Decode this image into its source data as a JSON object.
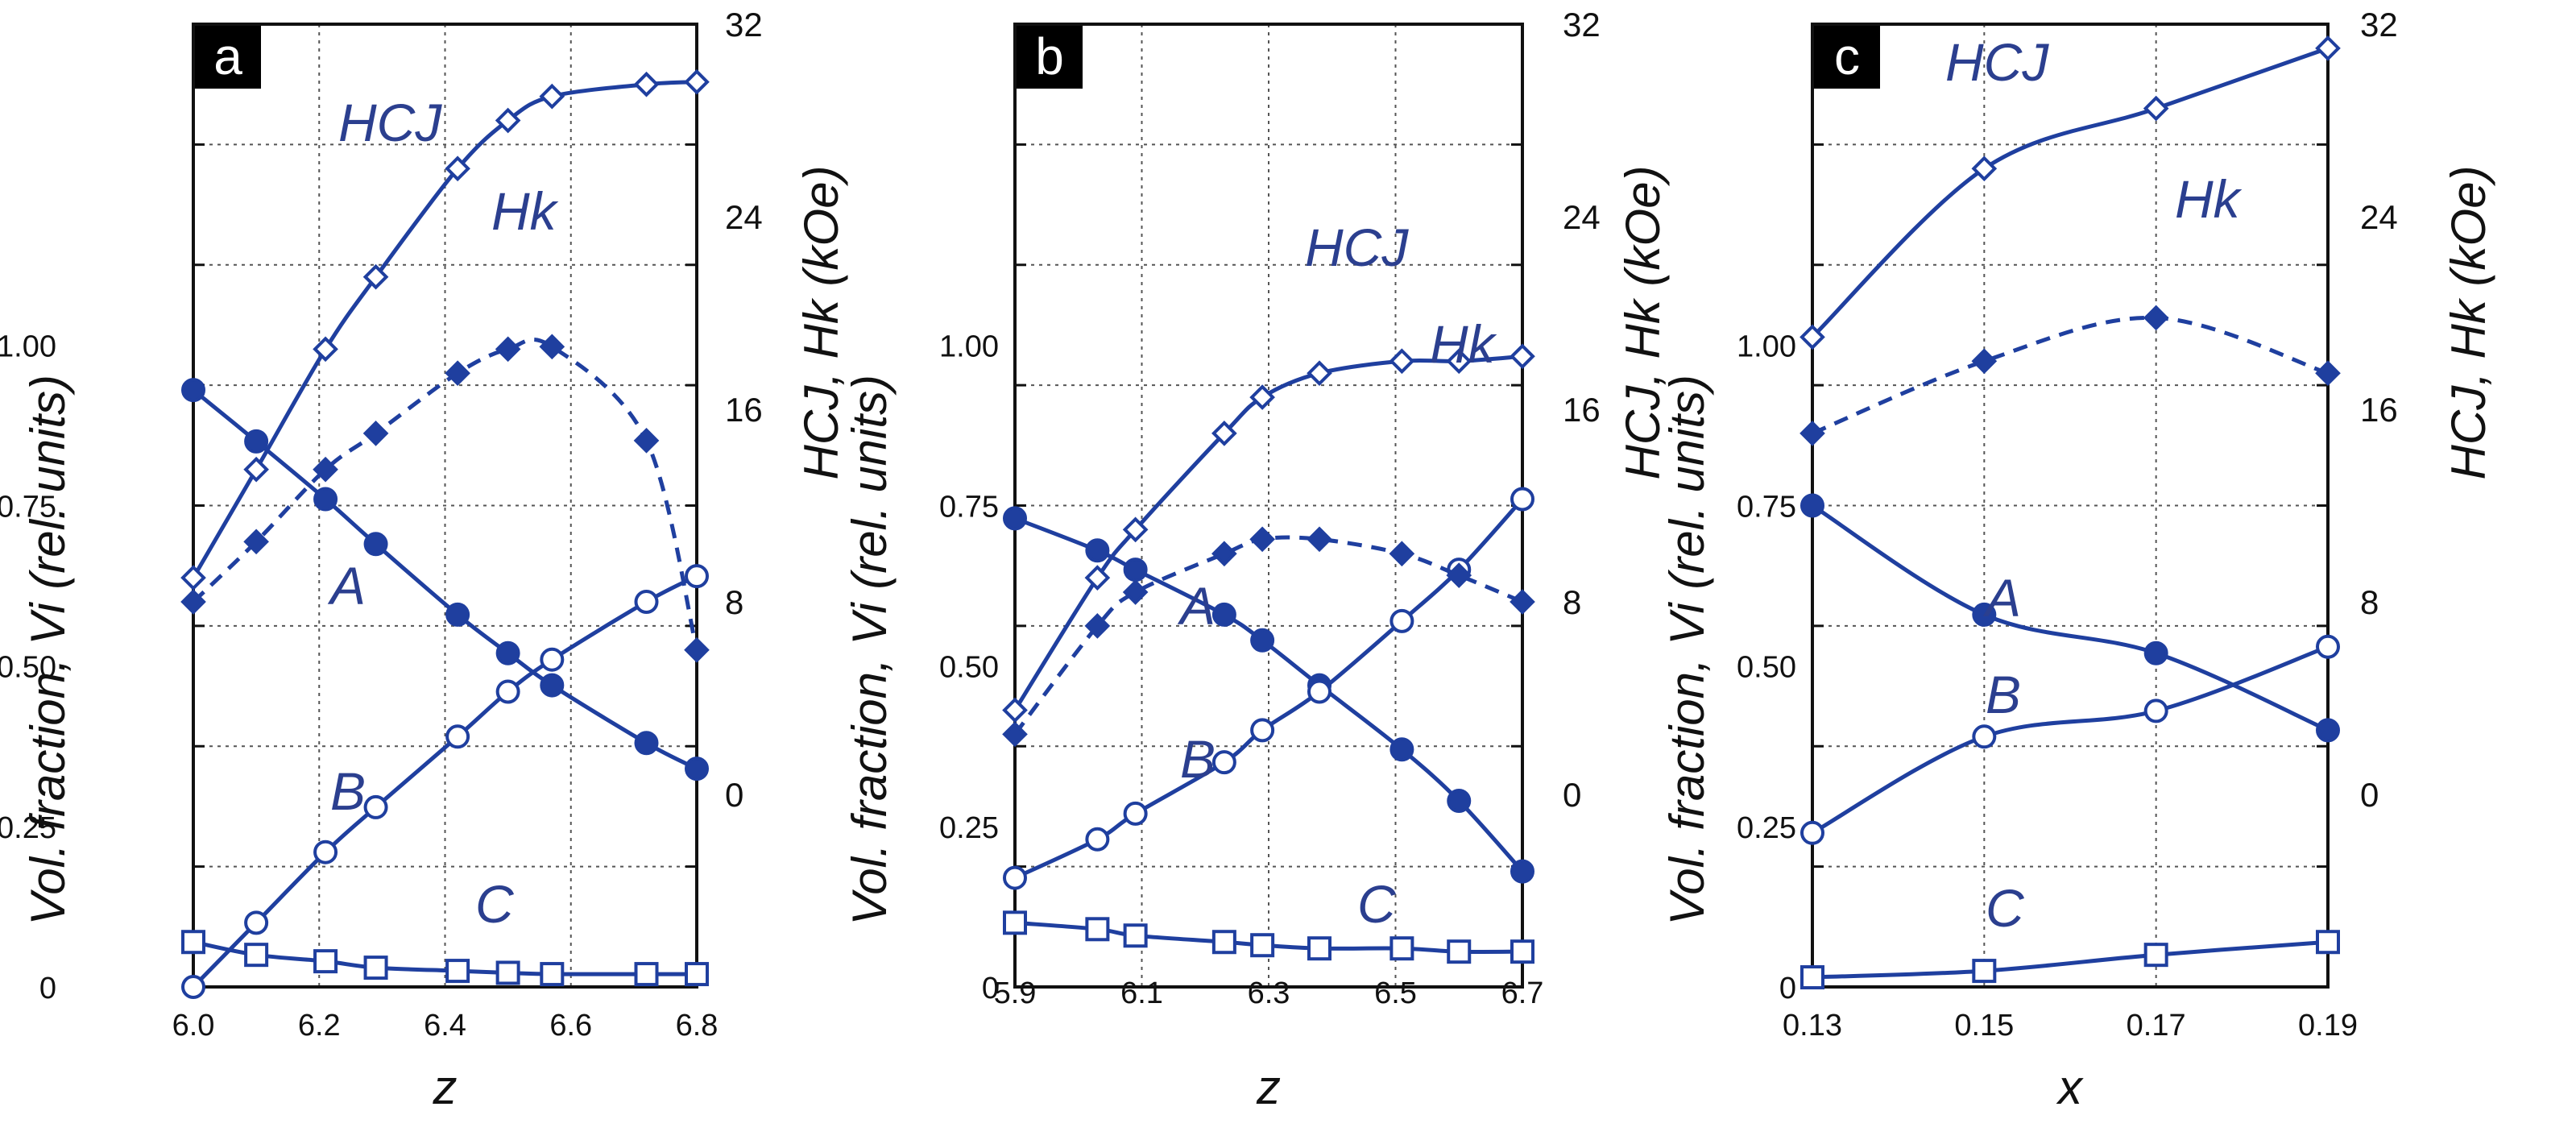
{
  "chart_data": [
    {
      "type": "line",
      "panel": "a",
      "xlabel": "z",
      "ylabel_left": "Vol. fraction, Vi (rel. units)",
      "ylabel_right": "HCJ, Hk (kOe)",
      "x_ticks": [
        "6.0",
        "6.2",
        "6.4",
        "6.6",
        "6.8"
      ],
      "xlim": [
        6.0,
        6.8
      ],
      "y_left_ticks": [
        "0",
        "0.25",
        "0.50",
        "0.75",
        "1.00"
      ],
      "y_left_lim": [
        0,
        1.5
      ],
      "y_right_ticks": [
        "0",
        "8",
        "16",
        "24",
        "32"
      ],
      "y_right_lim": [
        -8,
        32
      ],
      "series": [
        {
          "name": "A",
          "axis": "left",
          "marker": "filled-circle",
          "style": "solid",
          "x": [
            6.0,
            6.1,
            6.21,
            6.29,
            6.42,
            6.5,
            6.57,
            6.72,
            6.8
          ],
          "values": [
            0.93,
            0.85,
            0.76,
            0.69,
            0.58,
            0.52,
            0.47,
            0.38,
            0.34
          ]
        },
        {
          "name": "B",
          "axis": "left",
          "marker": "open-circle",
          "style": "solid",
          "x": [
            6.0,
            6.1,
            6.21,
            6.29,
            6.42,
            6.5,
            6.57,
            6.72,
            6.8
          ],
          "values": [
            0.0,
            0.1,
            0.21,
            0.28,
            0.39,
            0.46,
            0.51,
            0.6,
            0.64
          ]
        },
        {
          "name": "C",
          "axis": "left",
          "marker": "open-square",
          "style": "solid",
          "x": [
            6.0,
            6.1,
            6.21,
            6.29,
            6.42,
            6.5,
            6.57,
            6.72,
            6.8
          ],
          "values": [
            0.07,
            0.05,
            0.04,
            0.03,
            0.025,
            0.022,
            0.02,
            0.02,
            0.02
          ]
        },
        {
          "name": "HCJ",
          "axis": "right",
          "marker": "open-diamond",
          "style": "solid",
          "x": [
            6.0,
            6.1,
            6.21,
            6.29,
            6.42,
            6.5,
            6.57,
            6.72,
            6.8
          ],
          "values": [
            9,
            13.5,
            18.5,
            21.5,
            26,
            28,
            29,
            29.5,
            29.6
          ]
        },
        {
          "name": "Hk",
          "axis": "right",
          "marker": "filled-diamond",
          "style": "dashed",
          "x": [
            6.0,
            6.1,
            6.21,
            6.29,
            6.42,
            6.5,
            6.57,
            6.72,
            6.8
          ],
          "values": [
            8,
            10.5,
            13.5,
            15,
            17.5,
            18.5,
            18.6,
            14.7,
            6
          ]
        }
      ],
      "annotations": {
        "panel": "a",
        "HCJ": "HCJ",
        "Hk": "Hk",
        "A": "A",
        "B": "B",
        "C": "C"
      }
    },
    {
      "type": "line",
      "panel": "b",
      "xlabel": "z",
      "ylabel_left": "Vol. fraction, Vi (rel. units)",
      "ylabel_right": "HCJ, Hk (kOe)",
      "x_ticks": [
        "5.9",
        "6.1",
        "6.3",
        "6.5",
        "6.7"
      ],
      "xlim": [
        5.9,
        6.7
      ],
      "y_left_ticks": [
        "0",
        "0.25",
        "0.50",
        "0.75",
        "1.00"
      ],
      "y_left_lim": [
        0,
        1.5
      ],
      "y_right_ticks": [
        "0",
        "8",
        "16",
        "24",
        "32"
      ],
      "y_right_lim": [
        -8,
        32
      ],
      "series": [
        {
          "name": "A",
          "axis": "left",
          "marker": "filled-circle",
          "style": "solid",
          "x": [
            5.9,
            6.03,
            6.09,
            6.23,
            6.29,
            6.38,
            6.51,
            6.6,
            6.7
          ],
          "values": [
            0.73,
            0.68,
            0.65,
            0.58,
            0.54,
            0.47,
            0.37,
            0.29,
            0.18
          ]
        },
        {
          "name": "B",
          "axis": "left",
          "marker": "open-circle",
          "style": "solid",
          "x": [
            5.9,
            6.03,
            6.09,
            6.23,
            6.29,
            6.38,
            6.51,
            6.6,
            6.7
          ],
          "values": [
            0.17,
            0.23,
            0.27,
            0.35,
            0.4,
            0.46,
            0.57,
            0.65,
            0.76
          ]
        },
        {
          "name": "C",
          "axis": "left",
          "marker": "open-square",
          "style": "solid",
          "x": [
            5.9,
            6.03,
            6.09,
            6.23,
            6.29,
            6.38,
            6.51,
            6.6,
            6.7
          ],
          "values": [
            0.1,
            0.09,
            0.08,
            0.07,
            0.065,
            0.06,
            0.06,
            0.055,
            0.055
          ]
        },
        {
          "name": "HCJ",
          "axis": "right",
          "marker": "open-diamond",
          "style": "solid",
          "x": [
            5.9,
            6.03,
            6.09,
            6.23,
            6.29,
            6.38,
            6.51,
            6.6,
            6.7
          ],
          "values": [
            3.5,
            9,
            11,
            15,
            16.5,
            17.5,
            18,
            18,
            18.2
          ]
        },
        {
          "name": "Hk",
          "axis": "right",
          "marker": "filled-diamond",
          "style": "dashed",
          "x": [
            5.9,
            6.03,
            6.09,
            6.23,
            6.29,
            6.38,
            6.51,
            6.6,
            6.7
          ],
          "values": [
            2.5,
            7,
            8.4,
            10,
            10.6,
            10.6,
            10,
            9.1,
            8
          ]
        }
      ],
      "annotations": {
        "panel": "b",
        "HCJ": "HCJ",
        "Hk": "Hk",
        "A": "A",
        "B": "B",
        "C": "C"
      }
    },
    {
      "type": "line",
      "panel": "c",
      "xlabel": "x",
      "ylabel_left": "Vol. fraction, Vi (rel. units)",
      "ylabel_right": "HCJ, Hk (kOe)",
      "x_ticks": [
        "0.13",
        "0.15",
        "0.17",
        "0.19"
      ],
      "xlim": [
        0.13,
        0.19
      ],
      "y_left_ticks": [
        "0",
        "0.25",
        "0.50",
        "0.75",
        "1.00"
      ],
      "y_left_lim": [
        0,
        1.5
      ],
      "y_right_ticks": [
        "0",
        "8",
        "16",
        "24",
        "32"
      ],
      "y_right_lim": [
        -8,
        32
      ],
      "series": [
        {
          "name": "A",
          "axis": "left",
          "marker": "filled-circle",
          "style": "solid",
          "x": [
            0.13,
            0.15,
            0.17,
            0.19
          ],
          "values": [
            0.75,
            0.58,
            0.52,
            0.4
          ]
        },
        {
          "name": "B",
          "axis": "left",
          "marker": "open-circle",
          "style": "solid",
          "x": [
            0.13,
            0.15,
            0.17,
            0.19
          ],
          "values": [
            0.24,
            0.39,
            0.43,
            0.53
          ]
        },
        {
          "name": "C",
          "axis": "left",
          "marker": "open-square",
          "style": "solid",
          "x": [
            0.13,
            0.15,
            0.17,
            0.19
          ],
          "values": [
            0.015,
            0.025,
            0.05,
            0.07
          ]
        },
        {
          "name": "HCJ",
          "axis": "right",
          "marker": "open-diamond",
          "style": "solid",
          "x": [
            0.13,
            0.15,
            0.17,
            0.19
          ],
          "values": [
            19,
            26,
            28.5,
            31
          ]
        },
        {
          "name": "Hk",
          "axis": "right",
          "marker": "filled-diamond",
          "style": "dashed",
          "x": [
            0.13,
            0.15,
            0.17,
            0.19
          ],
          "values": [
            15,
            18,
            19.8,
            17.5
          ]
        }
      ],
      "annotations": {
        "panel": "c",
        "HCJ": "HCJ",
        "Hk": "Hk",
        "A": "A",
        "B": "B",
        "C": "C"
      }
    }
  ],
  "colors": {
    "series": "#1f3f9f",
    "label": "#2b3f8f",
    "frame": "#111111"
  }
}
